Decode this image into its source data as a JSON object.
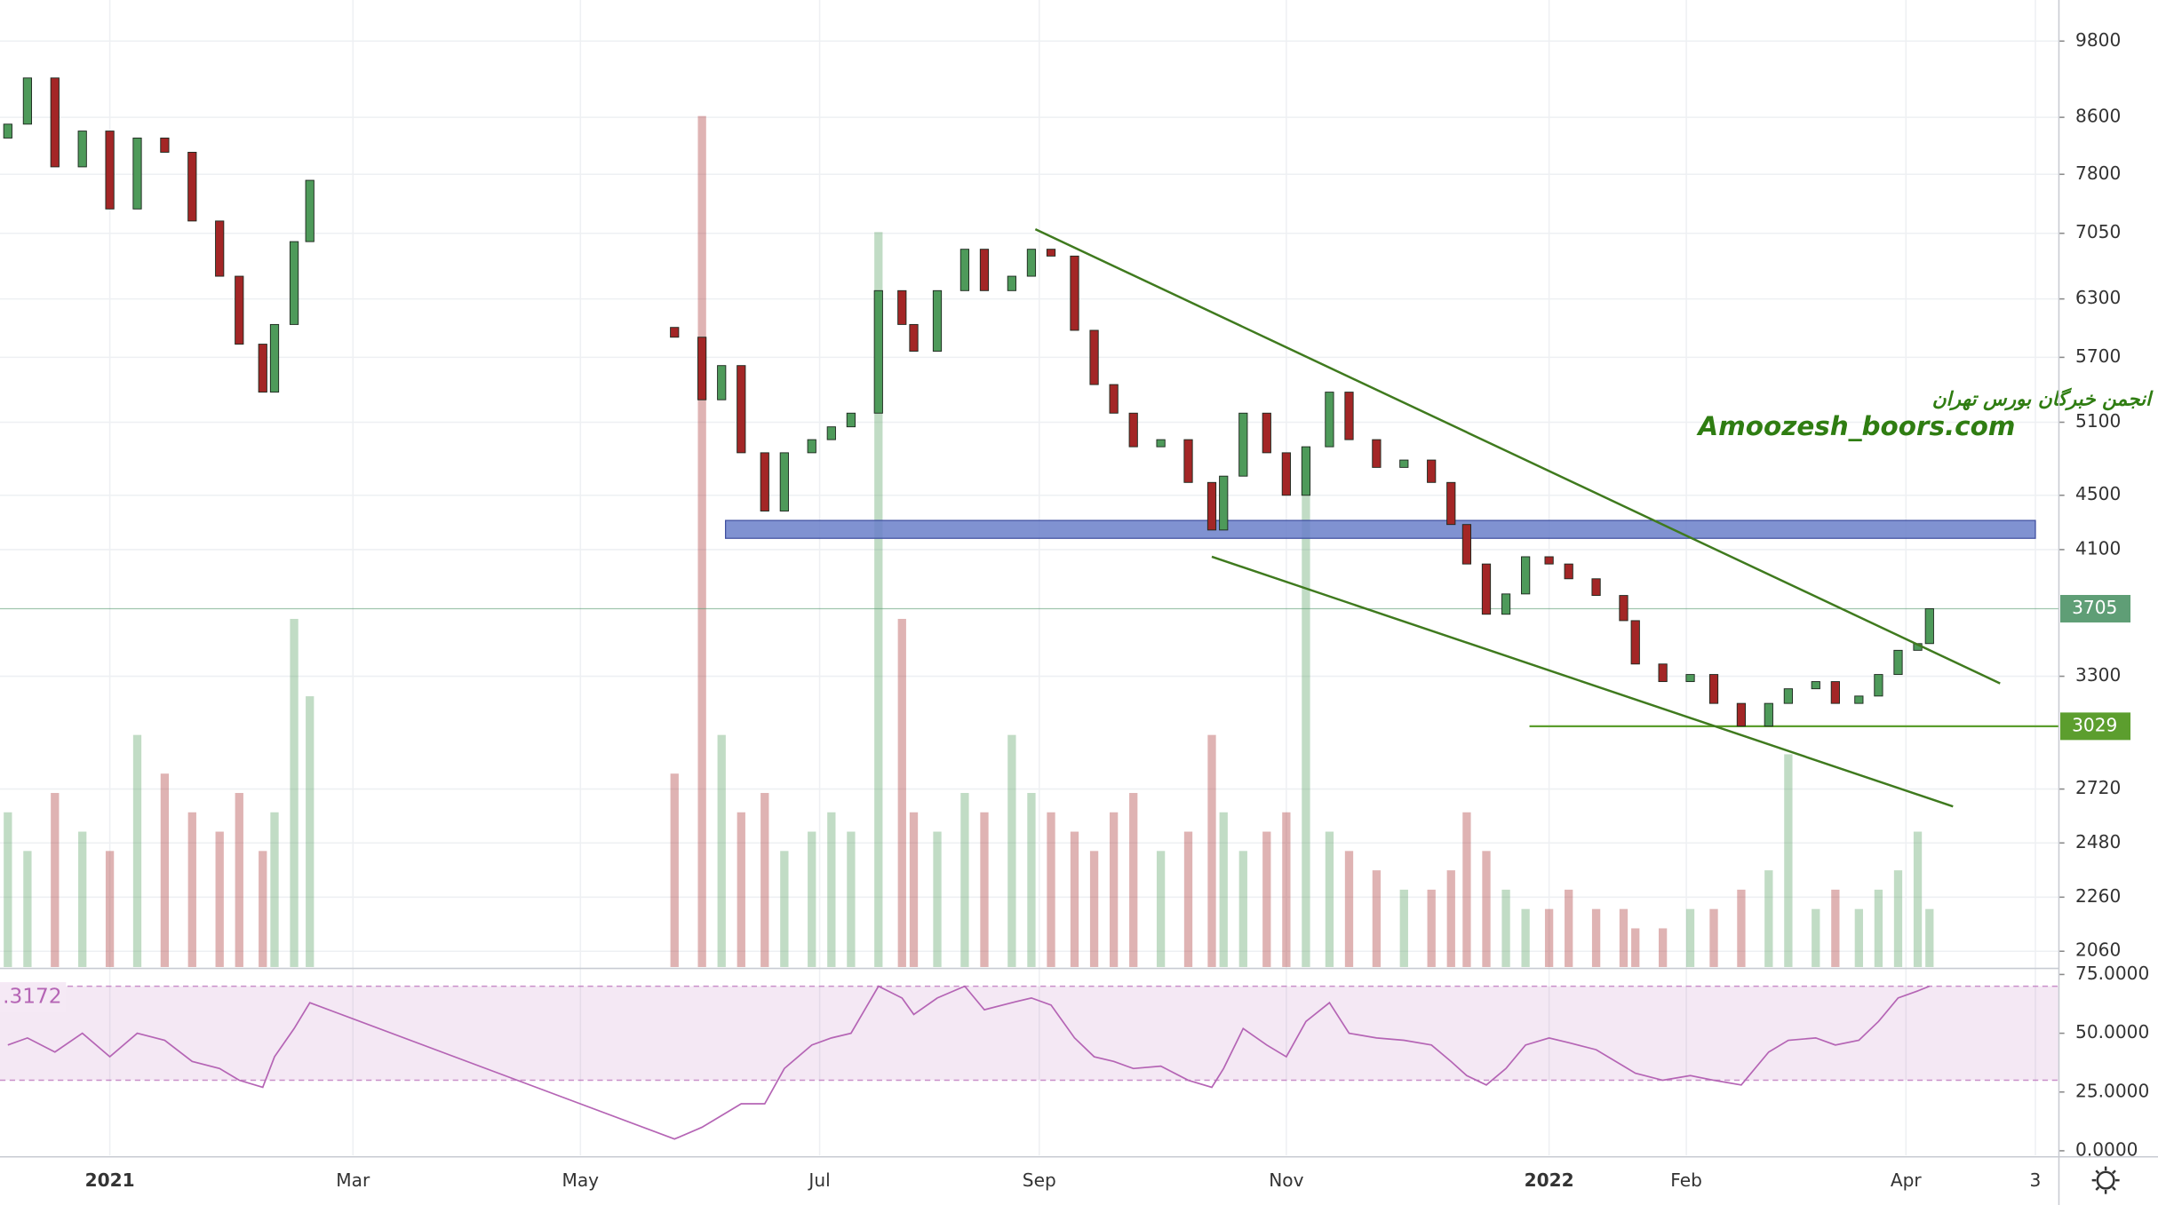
{
  "chart_data": {
    "type": "candlestick",
    "x": [
      -26,
      -21,
      -14,
      -7,
      0,
      7,
      14,
      21,
      28,
      33,
      39,
      42,
      47,
      51,
      144,
      151,
      156,
      161,
      167,
      172,
      179,
      184,
      189,
      196,
      202,
      205,
      211,
      218,
      223,
      230,
      235,
      240,
      246,
      251,
      256,
      261,
      268,
      275,
      281,
      284,
      289,
      295,
      300,
      305,
      311,
      316,
      323,
      330,
      337,
      342,
      346,
      351,
      356,
      361,
      367,
      372,
      379,
      386,
      389,
      396,
      403,
      409,
      416,
      423,
      428,
      435,
      440,
      446,
      451,
      456,
      461,
      464
    ],
    "open": [
      8300,
      8500,
      9200,
      7900,
      8400,
      7350,
      8300,
      8100,
      7200,
      6550,
      5830,
      5370,
      6030,
      6950,
      6000,
      5900,
      5300,
      5620,
      4840,
      4380,
      4840,
      4950,
      5060,
      5180,
      6390,
      6030,
      5760,
      6390,
      6860,
      6390,
      6550,
      6860,
      6780,
      5970,
      5440,
      5180,
      4890,
      4950,
      4600,
      4240,
      4650,
      5180,
      4840,
      4500,
      4890,
      5370,
      4950,
      4720,
      4780,
      4600,
      4280,
      4000,
      3670,
      3800,
      4050,
      4000,
      3900,
      3790,
      3630,
      3370,
      3270,
      3310,
      3150,
      3030,
      3150,
      3230,
      3270,
      3150,
      3190,
      3310,
      3450,
      3490
    ],
    "close": [
      8500,
      9200,
      7900,
      8400,
      7350,
      8300,
      8100,
      7200,
      6550,
      5830,
      5370,
      6030,
      6950,
      7720,
      5900,
      5300,
      5620,
      4840,
      4380,
      4840,
      4950,
      5060,
      5180,
      6390,
      6030,
      5760,
      6390,
      6860,
      6390,
      6550,
      6860,
      6780,
      5970,
      5440,
      5180,
      4890,
      4950,
      4600,
      4240,
      4650,
      5180,
      4840,
      4500,
      4890,
      5370,
      4950,
      4720,
      4780,
      4600,
      4280,
      4000,
      3670,
      3800,
      4050,
      4000,
      3900,
      3790,
      3630,
      3370,
      3270,
      3310,
      3150,
      3030,
      3150,
      3230,
      3270,
      3150,
      3190,
      3310,
      3450,
      3490,
      3705
    ],
    "up_color": "#4e9a5a",
    "down_color": "#a32626",
    "log_scale": true,
    "grid": true,
    "xlim": [
      -28,
      497
    ],
    "xticks": [
      {
        "value": 0,
        "label": "2021"
      },
      {
        "value": 62,
        "label": "Mar"
      },
      {
        "value": 120,
        "label": "May"
      },
      {
        "value": 181,
        "label": "Jul"
      },
      {
        "value": 237,
        "label": "Sep"
      },
      {
        "value": 300,
        "label": "Nov"
      },
      {
        "value": 367,
        "label": "2022"
      },
      {
        "value": 402,
        "label": "Feb"
      },
      {
        "value": 458,
        "label": "Apr"
      },
      {
        "value": 491,
        "label": "3"
      }
    ],
    "ylim": [
      2005,
      10515
    ],
    "yticks": [
      9800,
      8600,
      7800,
      7050,
      6300,
      5700,
      5100,
      4500,
      4100,
      3300,
      2720,
      2480,
      2260,
      2060
    ],
    "price_labels": [
      {
        "value": 3705,
        "color": "#5f9e76",
        "from": -28
      },
      {
        "value": 3029,
        "color": "#5c9e2e",
        "from": 362
      }
    ],
    "zone": {
      "x": [
        157,
        491
      ],
      "y": [
        4180,
        4310
      ],
      "color": "#6a7fc9"
    },
    "trendlines": [
      {
        "x": [
          236,
          482
        ],
        "y": [
          7100,
          3260
        ]
      },
      {
        "x": [
          281,
          470
        ],
        "y": [
          4050,
          2640
        ]
      }
    ],
    "trend_color": "#3f7a1e",
    "annotation": {
      "title": "انجمن خبرگان بورس تهران",
      "site": "Amoozesh_boors.com",
      "color": "#2f7d12",
      "x": 405,
      "y": 5200
    },
    "volume": [
      40,
      30,
      45,
      35,
      30,
      60,
      50,
      40,
      35,
      45,
      30,
      40,
      90,
      70,
      50,
      220,
      60,
      40,
      45,
      30,
      35,
      40,
      35,
      190,
      90,
      40,
      35,
      45,
      40,
      60,
      45,
      40,
      35,
      30,
      40,
      45,
      30,
      35,
      60,
      40,
      30,
      35,
      40,
      130,
      35,
      30,
      25,
      20,
      20,
      25,
      40,
      30,
      20,
      15,
      15,
      20,
      15,
      15,
      10,
      10,
      15,
      15,
      20,
      25,
      55,
      15,
      20,
      15,
      20,
      25,
      35,
      15
    ],
    "volume_ylim": [
      0,
      250
    ],
    "rsi": [
      45,
      48,
      42,
      50,
      40,
      50,
      47,
      38,
      35,
      30,
      27,
      40,
      52,
      63,
      5,
      10,
      15,
      20,
      20,
      35,
      45,
      48,
      50,
      70,
      65,
      58,
      65,
      70,
      60,
      63,
      65,
      62,
      48,
      40,
      38,
      35,
      36,
      30,
      27,
      35,
      52,
      45,
      40,
      55,
      63,
      50,
      48,
      47,
      45,
      38,
      32,
      28,
      35,
      45,
      48,
      46,
      43,
      36,
      33,
      30,
      32,
      30,
      28,
      42,
      47,
      48,
      45,
      47,
      55,
      65,
      68,
      70
    ],
    "rsi_label": ".3172",
    "rsi_color": "#b565b5",
    "rsi_band": [
      30,
      70
    ],
    "rsi_ylim": [
      -2,
      77
    ],
    "rsi_yticks": [
      {
        "value": 75,
        "label": "75.0000"
      },
      {
        "value": 50,
        "label": "50.0000"
      },
      {
        "value": 25,
        "label": "25.0000"
      },
      {
        "value": 0,
        "label": "0.0000"
      }
    ]
  }
}
